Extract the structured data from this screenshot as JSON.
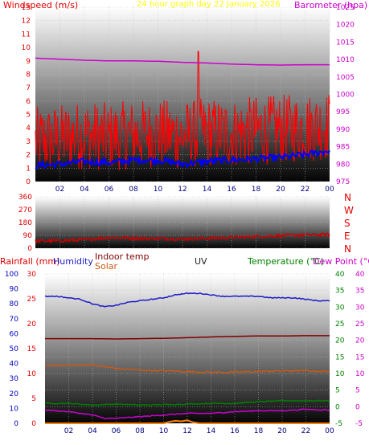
{
  "colors": {
    "windspeed": "#ff0000",
    "windgust": "#ff0000",
    "windavg": "#0000ff",
    "barometer": "#cc00cc",
    "direction": "#cc0000",
    "humidity": "#1c1cc8",
    "indoor_temp": "#800000",
    "solar": "#c85a14",
    "temperature": "#008000",
    "dew_point": "#cc00cc",
    "rainfall": "#ff8000",
    "uv": "#202020",
    "header_title": "#ffff00",
    "ticks_left": "#e00000",
    "ticks_right": "#cc00cc",
    "ticks_temp": "#008000"
  },
  "chart_data": [
    {
      "type": "line",
      "title": "24 hour graph day   22 January 2026",
      "x_ticks": [
        "02",
        "04",
        "06",
        "08",
        "10",
        "12",
        "14",
        "16",
        "18",
        "20",
        "22",
        "00"
      ],
      "y_left": {
        "label": "Windspeed (m/s)",
        "range": [
          0,
          13
        ],
        "ticks": [
          "0",
          "1",
          "2",
          "3",
          "4",
          "5",
          "6",
          "7",
          "8",
          "9",
          "10",
          "11",
          "12",
          "13"
        ]
      },
      "y_right": {
        "label": "Barometer (hpa)",
        "range": [
          975,
          1025
        ],
        "ticks": [
          "975",
          "980",
          "985",
          "990",
          "995",
          "1000",
          "1005",
          "1010",
          "1015",
          "1020",
          "1025"
        ]
      },
      "series": [
        {
          "hours": [
            0,
            2,
            4,
            6,
            8,
            10,
            12,
            14,
            16,
            18,
            20,
            22,
            24
          ],
          "values": [
            1010.4,
            1010.1,
            1009.8,
            1009.6,
            1009.6,
            1009.5,
            1009.2,
            1009.0,
            1008.7,
            1008.5,
            1008.4,
            1008.5,
            1008.5
          ]
        },
        {
          "hours": [
            0,
            2,
            4,
            6,
            8,
            10,
            12,
            14,
            16,
            18,
            20,
            22,
            24
          ],
          "values": [
            1.2,
            1.3,
            1.5,
            1.4,
            1.6,
            1.6,
            1.3,
            1.5,
            1.6,
            1.7,
            1.8,
            2.0,
            2.3
          ]
        },
        {
          "hours": [
            0,
            2,
            4,
            6,
            8,
            10,
            12,
            14,
            16,
            18,
            20,
            22,
            24
          ],
          "values": [
            3.0,
            3.2,
            3.5,
            3.3,
            3.5,
            3.6,
            3.4,
            3.7,
            3.6,
            3.8,
            3.9,
            4.0,
            4.2
          ]
        }
      ],
      "peak": {
        "hour": 13.3,
        "value": 9.7
      }
    },
    {
      "type": "line",
      "y_left": {
        "range": [
          0,
          360
        ],
        "ticks": [
          "0",
          "90",
          "180",
          "270",
          "360"
        ]
      },
      "y_right_labels": [
        "N",
        "W",
        "S",
        "E",
        "N"
      ],
      "series": [
        {
          "hours": [
            0,
            2,
            4,
            6,
            8,
            10,
            12,
            14,
            16,
            18,
            20,
            22,
            24
          ],
          "values": [
            50,
            52,
            60,
            75,
            70,
            68,
            65,
            70,
            75,
            82,
            88,
            92,
            95
          ]
        }
      ]
    },
    {
      "type": "line",
      "legend": {
        "rainfall": "Rainfall (mm)",
        "humidity": "Humidity",
        "indoor_temp": "Indoor temp",
        "solar": "Solar",
        "uv": "UV",
        "temperature": "Temperature (°C)",
        "dew_point": "Dew Point (°C)"
      },
      "x_ticks": [
        "02",
        "04",
        "06",
        "08",
        "10",
        "12",
        "14",
        "16",
        "18",
        "20",
        "22",
        "00"
      ],
      "y_humidity": {
        "range": [
          0,
          100
        ],
        "ticks": [
          "0",
          "10",
          "20",
          "30",
          "40",
          "50",
          "60",
          "70",
          "80",
          "90",
          "100"
        ]
      },
      "y_rain": {
        "range": [
          0,
          30
        ],
        "ticks": [
          "0",
          "5",
          "10",
          "15",
          "20",
          "25",
          "30"
        ]
      },
      "y_temp": {
        "range": [
          -5,
          40
        ],
        "ticks": [
          "-5",
          "0",
          "5",
          "10",
          "15",
          "20",
          "25",
          "30",
          "35",
          "40"
        ]
      },
      "y_dew": {
        "range": [
          -5,
          40
        ],
        "ticks": [
          "-5",
          "0",
          "5",
          "10",
          "15",
          "20",
          "25",
          "30",
          "35",
          "40"
        ]
      },
      "series": [
        {
          "hours": [
            0,
            1,
            2,
            3,
            4,
            5,
            6,
            7,
            8,
            9,
            10,
            11,
            12,
            13,
            14,
            15,
            16,
            17,
            18,
            19,
            20,
            21,
            22,
            23,
            24
          ],
          "values": [
            85,
            85,
            84,
            83,
            80,
            78,
            79,
            81,
            82,
            83,
            84,
            86,
            87,
            87,
            86,
            85,
            85,
            85,
            85,
            84,
            84,
            84,
            83,
            82,
            82
          ]
        },
        {
          "hours": [
            0,
            2,
            4,
            6,
            8,
            10,
            12,
            14,
            16,
            18,
            20,
            22,
            24
          ],
          "values": [
            20.5,
            20.5,
            20.5,
            20.4,
            20.5,
            20.6,
            20.8,
            21.0,
            21.2,
            21.3,
            21.3,
            21.4,
            21.4
          ]
        },
        {
          "hours": [
            0,
            2,
            4,
            6,
            8,
            10,
            12,
            14,
            16,
            18,
            20,
            22,
            24
          ],
          "values": [
            12.5,
            12.4,
            12.6,
            11.5,
            11.0,
            10.8,
            10.6,
            10.4,
            10.4,
            10.6,
            10.8,
            10.8,
            10.6
          ]
        },
        {
          "hours": [
            0,
            2,
            4,
            6,
            8,
            10,
            12,
            14,
            16,
            18,
            20,
            22,
            24
          ],
          "values": [
            1.0,
            1.0,
            0.5,
            0.8,
            0.5,
            0.6,
            0.8,
            1.0,
            1.0,
            1.5,
            1.8,
            1.8,
            1.8
          ]
        },
        {
          "hours": [
            0,
            2,
            4,
            5,
            6,
            8,
            10,
            12,
            14,
            16,
            18,
            20,
            22,
            24
          ],
          "values": [
            -1.0,
            -1.5,
            -2.5,
            -3.5,
            -3.5,
            -3.0,
            -2.5,
            -2.0,
            -2.0,
            -1.5,
            -1.2,
            -1.2,
            -0.8,
            -1.0
          ]
        },
        {
          "hours": [
            0,
            8,
            10,
            10.5,
            11,
            11.5,
            12,
            12.5,
            13,
            14,
            24
          ],
          "values": [
            0,
            0,
            0,
            0.3,
            0.5,
            0.4,
            0.6,
            0.2,
            0,
            0,
            0
          ]
        }
      ]
    }
  ]
}
